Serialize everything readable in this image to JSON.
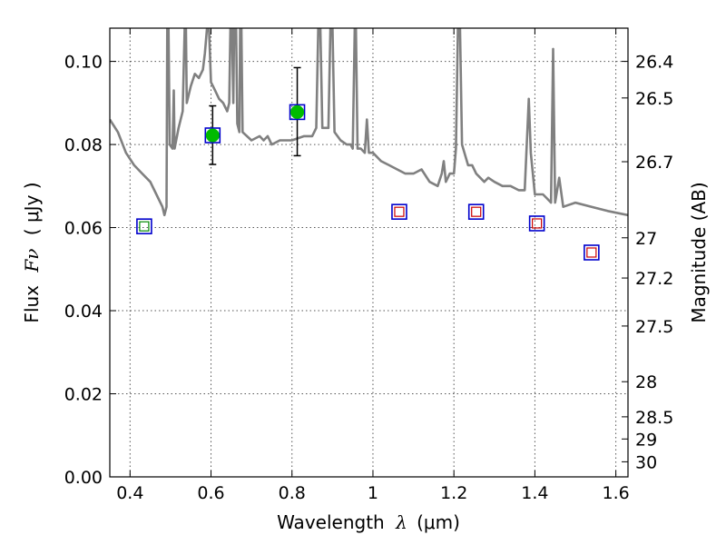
{
  "chart_data": {
    "type": "scatter",
    "xlabel_prefix": "Wavelength",
    "xlabel_var": "λ",
    "xlabel_unit": "(μm)",
    "ylabel_prefix": "Flux",
    "ylabel_var": "Fν",
    "ylabel_unit": "( μJy )",
    "y2label": "Magnitude (AB)",
    "xlim": [
      0.35,
      1.63
    ],
    "ylim": [
      0.0,
      0.108
    ],
    "xticks": [
      0.4,
      0.6,
      0.8,
      1.0,
      1.2,
      1.4,
      1.6
    ],
    "xtick_labels": [
      "0.4",
      "0.6",
      "0.8",
      "1",
      "1.2",
      "1.4",
      "1.6"
    ],
    "yticks": [
      0.0,
      0.02,
      0.04,
      0.06,
      0.08,
      0.1
    ],
    "ytick_labels": [
      "0.00",
      "0.02",
      "0.04",
      "0.06",
      "0.08",
      "0.10"
    ],
    "y2ticks": [
      {
        "mag": 26.4,
        "label": "26.4"
      },
      {
        "mag": 26.5,
        "label": "26.5"
      },
      {
        "mag": 26.7,
        "label": "26.7"
      },
      {
        "mag": 27.0,
        "label": "27"
      },
      {
        "mag": 27.2,
        "label": "27.2"
      },
      {
        "mag": 27.5,
        "label": "27.5"
      },
      {
        "mag": 28.0,
        "label": "28"
      },
      {
        "mag": 28.5,
        "label": "28.5"
      },
      {
        "mag": 29.0,
        "label": "29"
      },
      {
        "mag": 30.0,
        "label": "30"
      }
    ],
    "grid": true,
    "colors": {
      "model": "#808080",
      "box": "#0000cc",
      "detection": "#00bb00",
      "upper_limit_inner": "#cc0000",
      "upper_limit_inner_blue": "#008800",
      "errorbar": "#000000"
    },
    "model_sed": {
      "name": "model spectrum",
      "points": [
        [
          0.35,
          0.086
        ],
        [
          0.37,
          0.083
        ],
        [
          0.39,
          0.078
        ],
        [
          0.41,
          0.075
        ],
        [
          0.43,
          0.073
        ],
        [
          0.45,
          0.071
        ],
        [
          0.47,
          0.067
        ],
        [
          0.48,
          0.065
        ],
        [
          0.485,
          0.063
        ],
        [
          0.49,
          0.065
        ],
        [
          0.492,
          0.108
        ],
        [
          0.495,
          0.108
        ],
        [
          0.498,
          0.08
        ],
        [
          0.505,
          0.079
        ],
        [
          0.508,
          0.093
        ],
        [
          0.51,
          0.079
        ],
        [
          0.52,
          0.084
        ],
        [
          0.53,
          0.088
        ],
        [
          0.535,
          0.108
        ],
        [
          0.538,
          0.108
        ],
        [
          0.54,
          0.09
        ],
        [
          0.55,
          0.094
        ],
        [
          0.56,
          0.097
        ],
        [
          0.57,
          0.096
        ],
        [
          0.58,
          0.098
        ],
        [
          0.585,
          0.102
        ],
        [
          0.59,
          0.108
        ],
        [
          0.595,
          0.108
        ],
        [
          0.6,
          0.095
        ],
        [
          0.61,
          0.093
        ],
        [
          0.62,
          0.091
        ],
        [
          0.63,
          0.09
        ],
        [
          0.64,
          0.088
        ],
        [
          0.645,
          0.09
        ],
        [
          0.648,
          0.108
        ],
        [
          0.652,
          0.108
        ],
        [
          0.655,
          0.09
        ],
        [
          0.657,
          0.108
        ],
        [
          0.662,
          0.108
        ],
        [
          0.665,
          0.085
        ],
        [
          0.67,
          0.083
        ],
        [
          0.672,
          0.108
        ],
        [
          0.675,
          0.108
        ],
        [
          0.678,
          0.083
        ],
        [
          0.7,
          0.081
        ],
        [
          0.72,
          0.082
        ],
        [
          0.73,
          0.081
        ],
        [
          0.74,
          0.082
        ],
        [
          0.75,
          0.08
        ],
        [
          0.77,
          0.081
        ],
        [
          0.8,
          0.081
        ],
        [
          0.83,
          0.082
        ],
        [
          0.85,
          0.082
        ],
        [
          0.86,
          0.084
        ],
        [
          0.865,
          0.108
        ],
        [
          0.87,
          0.108
        ],
        [
          0.875,
          0.084
        ],
        [
          0.89,
          0.084
        ],
        [
          0.895,
          0.108
        ],
        [
          0.9,
          0.108
        ],
        [
          0.905,
          0.083
        ],
        [
          0.92,
          0.081
        ],
        [
          0.935,
          0.08
        ],
        [
          0.945,
          0.08
        ],
        [
          0.95,
          0.079
        ],
        [
          0.955,
          0.108
        ],
        [
          0.958,
          0.108
        ],
        [
          0.962,
          0.079
        ],
        [
          0.97,
          0.079
        ],
        [
          0.98,
          0.078
        ],
        [
          0.985,
          0.086
        ],
        [
          0.99,
          0.078
        ],
        [
          1.0,
          0.078
        ],
        [
          1.02,
          0.076
        ],
        [
          1.04,
          0.075
        ],
        [
          1.06,
          0.074
        ],
        [
          1.08,
          0.073
        ],
        [
          1.1,
          0.073
        ],
        [
          1.12,
          0.074
        ],
        [
          1.14,
          0.071
        ],
        [
          1.16,
          0.07
        ],
        [
          1.17,
          0.073
        ],
        [
          1.175,
          0.076
        ],
        [
          1.18,
          0.071
        ],
        [
          1.19,
          0.073
        ],
        [
          1.2,
          0.073
        ],
        [
          1.205,
          0.079
        ],
        [
          1.21,
          0.108
        ],
        [
          1.215,
          0.108
        ],
        [
          1.22,
          0.08
        ],
        [
          1.235,
          0.075
        ],
        [
          1.245,
          0.075
        ],
        [
          1.255,
          0.073
        ],
        [
          1.265,
          0.072
        ],
        [
          1.275,
          0.071
        ],
        [
          1.285,
          0.072
        ],
        [
          1.3,
          0.071
        ],
        [
          1.32,
          0.07
        ],
        [
          1.34,
          0.07
        ],
        [
          1.36,
          0.069
        ],
        [
          1.375,
          0.069
        ],
        [
          1.385,
          0.091
        ],
        [
          1.39,
          0.078
        ],
        [
          1.4,
          0.068
        ],
        [
          1.42,
          0.068
        ],
        [
          1.43,
          0.067
        ],
        [
          1.44,
          0.066
        ],
        [
          1.445,
          0.103
        ],
        [
          1.45,
          0.066
        ],
        [
          1.46,
          0.072
        ],
        [
          1.47,
          0.065
        ],
        [
          1.5,
          0.066
        ],
        [
          1.54,
          0.065
        ],
        [
          1.58,
          0.064
        ],
        [
          1.63,
          0.063
        ]
      ]
    },
    "detections": [
      {
        "x": 0.604,
        "y": 0.0822,
        "err_low": 0.0752,
        "err_high": 0.0893
      },
      {
        "x": 0.813,
        "y": 0.0878,
        "err_low": 0.0773,
        "err_high": 0.0985
      }
    ],
    "model_boxes": [
      {
        "x": 0.435,
        "y": 0.0603,
        "inner": "green-square"
      },
      {
        "x": 0.604,
        "y": 0.0822,
        "inner": "none"
      },
      {
        "x": 0.813,
        "y": 0.0878,
        "inner": "none"
      },
      {
        "x": 1.065,
        "y": 0.0638,
        "inner": "red-square"
      },
      {
        "x": 1.255,
        "y": 0.0638,
        "inner": "red-square"
      },
      {
        "x": 1.405,
        "y": 0.061,
        "inner": "red-square"
      },
      {
        "x": 1.54,
        "y": 0.054,
        "inner": "red-square"
      }
    ]
  }
}
